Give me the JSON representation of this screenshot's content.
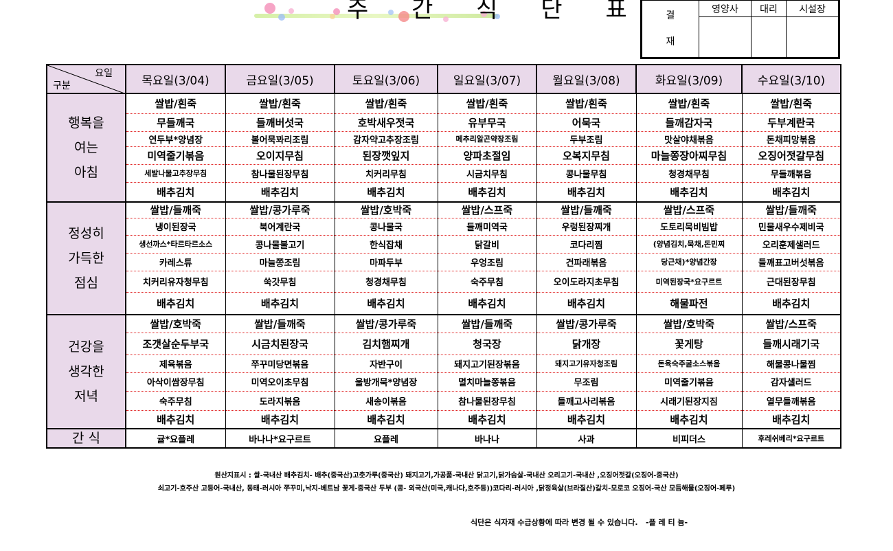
{
  "title": "주 간 식 단 표",
  "approval": {
    "label_top": "결",
    "label_bottom": "재",
    "roles": [
      "영양사",
      "대리",
      "시설장"
    ]
  },
  "header": {
    "corner_day": "요일",
    "corner_category": "구분",
    "days": [
      "목요일(3/04)",
      "금요일(3/05)",
      "토요일(3/06)",
      "일요일(3/07)",
      "월요일(3/08)",
      "화요일(3/09)",
      "수요일(3/10)"
    ]
  },
  "colors": {
    "header_bg": "#e9d9ea",
    "row_divider": "#e02020"
  },
  "meals": [
    {
      "label": [
        "행복을",
        "여는",
        "아침"
      ],
      "rows": [
        [
          "쌀밥/흰죽",
          "쌀밥/흰죽",
          "쌀밥/흰죽",
          "쌀밥/흰죽",
          "쌀밥/흰죽",
          "쌀밥/흰죽",
          "쌀밥/흰죽"
        ],
        [
          "무들깨국",
          "들깨버섯국",
          "호박새우젓국",
          "유부무국",
          "어묵국",
          "들깨감자국",
          "두부계란국"
        ],
        [
          "연두부*양념장",
          "볼어묵꽈리조림",
          "감자약고추장조림",
          "메추리알곤약장조림",
          "두부조림",
          "맛살야채볶음",
          "돈채피망볶음"
        ],
        [
          "미역줄기볶음",
          "오이지무침",
          "된장깻잎지",
          "양파초절임",
          "오복지무침",
          "마늘쫑장아찌무침",
          "오징어젓갈무침"
        ],
        [
          "세발나물고추장무침",
          "참나물된장무침",
          "치커리무침",
          "시금치무침",
          "콩나물무침",
          "청경채무침",
          "무들깨볶음"
        ],
        [
          "배추김치",
          "배추김치",
          "배추김치",
          "배추김치",
          "배추김치",
          "배추김치",
          "배추김치"
        ]
      ]
    },
    {
      "label": [
        "정성히",
        "가득한",
        "점심"
      ],
      "rows": [
        [
          "쌀밥/들깨죽",
          "쌀밥/콩가루죽",
          "쌀밥/호박죽",
          "쌀밥/스프죽",
          "쌀밥/들깨죽",
          "쌀밥/스프죽",
          "쌀밥/들깨죽"
        ],
        [
          "냉이된장국",
          "북어계란국",
          "콩나물국",
          "들깨미역국",
          "우렁된장찌개",
          "도토리묵비빔밥",
          "민물새우수제비국"
        ],
        [
          "생선까스*타르타르소스",
          "콩나물불고기",
          "한식잡채",
          "닭갈비",
          "코다리찜",
          "(양념김치,묵채,돈민찌",
          "오리훈제샐러드"
        ],
        [
          "카레스튜",
          "마늘쫑조림",
          "마파두부",
          "우엉조림",
          "건파래볶음",
          "당근채)*양념간장",
          "들깨표고버섯볶음"
        ],
        [
          "치커리유자청무침",
          "쑥갓무침",
          "청경채무침",
          "숙주무침",
          "오이도라지초무침",
          "미역된장국*요구르트",
          "근대된장무침"
        ],
        [
          "배추김치",
          "배추김치",
          "배추김치",
          "배추김치",
          "배추김치",
          "해물파전",
          "배추김치"
        ]
      ]
    },
    {
      "label": [
        "건강을",
        "생각한",
        "저녁"
      ],
      "rows": [
        [
          "쌀밥/호박죽",
          "쌀밥/들깨죽",
          "쌀밥/콩가루죽",
          "쌀밥/들깨죽",
          "쌀밥/콩가루죽",
          "쌀밥/호박죽",
          "쌀밥/스프죽"
        ],
        [
          "조갯살순두부국",
          "시금치된장국",
          "김치햄찌개",
          "청국장",
          "닭개장",
          "꽃게탕",
          "들깨시래기국"
        ],
        [
          "제육볶음",
          "쭈꾸미당면볶음",
          "자반구이",
          "돼지고기된장볶음",
          "돼지고기유자청조림",
          "돈육숙주굴소스볶음",
          "해물콩나물찜"
        ],
        [
          "아삭이쌈장무침",
          "미역오이초무침",
          "울방개묵*양념장",
          "멸치마늘쫑볶음",
          "무조림",
          "미역줄기볶음",
          "감자샐러드"
        ],
        [
          "숙주무침",
          "도라지볶음",
          "새송이볶음",
          "참나물된장무침",
          "들깨고사리볶음",
          "시래기된장지짐",
          "열무들깨볶음"
        ],
        [
          "배추김치",
          "배추김치",
          "배추김치",
          "배추김치",
          "배추김치",
          "배추김치",
          "배추김치"
        ]
      ]
    },
    {
      "label": [
        "간 식"
      ],
      "rows": [
        [
          "귤*요플레",
          "바나나*요구르트",
          "요플레",
          "바나나",
          "사과",
          "비피더스",
          "후레쉬베리*요구르트"
        ]
      ]
    }
  ],
  "footer": {
    "origin_line1": "원산지표시 : 쌀-국내산   배추김치- 배추(중국산)고춧가루(중국산)  돼지고기,가공품-국내산  닭고기,닭가슴살-국내산  오리고기-국내산 ,오징어젓갈(오징어-중국산)",
    "origin_line2": "쇠고기-호주산 고등어-국내산, 동태-러시아   쭈꾸미,낙지-베트남   꽃게-중국산   두부 (콩- 외국산(미국,캐나다,호주등))코다리-러시아 ,닭정육살(브라질산)갈치-모로코 오징어-국산 모듬해물(오징어-페루)",
    "notice": "식단은 식자재 수급상황에 따라 변경 될 수 있습니다.",
    "brand": "-플 레 티 늄-"
  }
}
